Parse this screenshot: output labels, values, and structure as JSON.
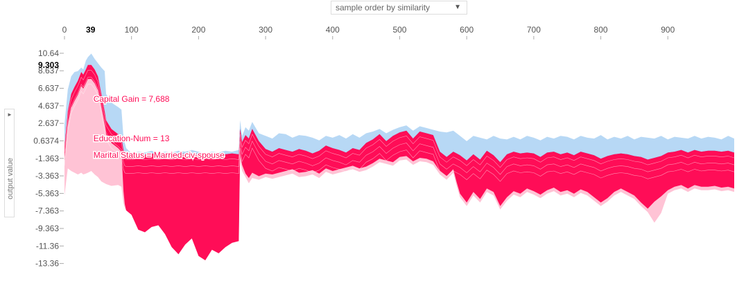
{
  "controls": {
    "order_label": "sample order by similarity",
    "caret": "▼",
    "side_label": "output value",
    "side_arrow": "►"
  },
  "colors": {
    "positive": "#ff0d57",
    "positive_light": "#ffc3d5",
    "negative": "#1e88e5",
    "negative_light": "#b7d8f5",
    "axis_text": "#555555",
    "highlight_text": "#000000"
  },
  "chart_data": {
    "type": "area",
    "xlim": [
      0,
      999
    ],
    "ylim": [
      -14.5,
      11.5
    ],
    "x_ticks": [
      0,
      100,
      200,
      300,
      400,
      500,
      600,
      700,
      800,
      900
    ],
    "x_highlight": "39",
    "y_ticks": [
      "10.64",
      "8.637",
      "6.637",
      "4.637",
      "2.637",
      "0.6374",
      "-1.363",
      "-3.363",
      "-5.363",
      "-7.363",
      "-9.363",
      "-11.36",
      "-13.36"
    ],
    "y_tick_values": [
      10.637,
      8.637,
      6.637,
      4.637,
      2.637,
      0.6374,
      -1.363,
      -3.363,
      -5.363,
      -7.363,
      -9.363,
      -11.363,
      -13.363
    ],
    "y_highlight": "9.303",
    "y_highlight_value": 9.303,
    "highlight_sample": 39,
    "annotations": [
      {
        "text": "Capital Gain = 7,688",
        "value": 5.4
      },
      {
        "text": "Education-Num = 13",
        "value": 0.9
      },
      {
        "text": "Marital Status = Married-civ-spouse",
        "value": -1.0
      }
    ],
    "series": [
      {
        "role": "upper-envelope",
        "x": [
          0,
          5,
          10,
          15,
          20,
          25,
          28,
          32,
          35,
          40,
          45,
          50,
          55,
          60,
          62,
          70,
          80,
          85,
          88,
          90,
          92,
          100,
          110,
          120,
          130,
          140,
          150,
          160,
          170,
          180,
          190,
          200,
          210,
          220,
          230,
          240,
          250,
          260,
          262,
          265,
          270,
          275,
          280,
          290,
          300,
          310,
          320,
          330,
          340,
          350,
          360,
          370,
          380,
          390,
          400,
          410,
          420,
          430,
          440,
          450,
          460,
          470,
          480,
          490,
          500,
          510,
          520,
          530,
          540,
          550,
          560,
          570,
          580,
          585,
          590,
          600,
          610,
          620,
          630,
          640,
          650,
          660,
          670,
          680,
          690,
          700,
          710,
          720,
          730,
          740,
          750,
          760,
          770,
          780,
          790,
          800,
          810,
          820,
          830,
          840,
          850,
          860,
          870,
          880,
          890,
          900,
          910,
          920,
          930,
          940,
          950,
          960,
          970,
          980,
          990,
          999
        ],
        "y": [
          2.5,
          6.5,
          8.0,
          8.5,
          8.6,
          9.0,
          8.8,
          9.8,
          10.2,
          10.6,
          10.0,
          9.5,
          9.0,
          8.6,
          6.0,
          5.0,
          4.5,
          4.2,
          1.0,
          0.4,
          -0.2,
          -0.8,
          -0.6,
          -0.7,
          -0.5,
          -0.8,
          -0.6,
          -0.7,
          -0.5,
          -0.6,
          -0.4,
          -0.6,
          -0.8,
          -0.6,
          -0.7,
          -0.5,
          -0.6,
          -0.4,
          3.0,
          1.2,
          2.2,
          1.8,
          2.8,
          1.5,
          1.2,
          0.9,
          1.5,
          1.4,
          1.0,
          1.3,
          1.2,
          1.0,
          0.7,
          1.2,
          1.0,
          1.3,
          0.9,
          1.4,
          1.0,
          1.5,
          1.7,
          2.0,
          1.5,
          1.9,
          2.2,
          2.4,
          1.8,
          2.3,
          2.1,
          1.9,
          1.7,
          1.6,
          1.8,
          1.5,
          1.2,
          0.6,
          1.2,
          1.0,
          0.8,
          1.2,
          0.9,
          0.8,
          1.1,
          0.8,
          1.2,
          1.0,
          0.7,
          1.1,
          0.9,
          1.2,
          1.1,
          0.8,
          1.2,
          1.0,
          0.9,
          1.3,
          0.8,
          1.1,
          0.9,
          1.2,
          0.8,
          1.1,
          1.0,
          0.9,
          1.2,
          0.8,
          1.1,
          1.0,
          0.9,
          1.2,
          0.9,
          1.1,
          1.0,
          0.8,
          1.2,
          0.9
        ]
      },
      {
        "role": "model-output",
        "x": [
          0,
          5,
          10,
          15,
          20,
          25,
          28,
          32,
          35,
          40,
          45,
          50,
          55,
          60,
          62,
          70,
          80,
          85,
          88,
          90,
          92,
          100,
          110,
          120,
          130,
          140,
          150,
          160,
          170,
          180,
          190,
          200,
          210,
          220,
          230,
          240,
          250,
          260,
          262,
          265,
          270,
          275,
          280,
          290,
          300,
          310,
          320,
          330,
          340,
          350,
          360,
          370,
          380,
          390,
          400,
          410,
          420,
          430,
          440,
          450,
          460,
          470,
          480,
          490,
          500,
          510,
          520,
          530,
          540,
          550,
          560,
          570,
          580,
          585,
          590,
          600,
          610,
          620,
          630,
          640,
          650,
          660,
          670,
          680,
          690,
          700,
          710,
          720,
          730,
          740,
          750,
          760,
          770,
          780,
          790,
          800,
          810,
          820,
          830,
          840,
          850,
          860,
          870,
          880,
          890,
          900,
          910,
          920,
          930,
          940,
          950,
          960,
          970,
          980,
          990,
          999
        ],
        "y": [
          0.0,
          4.0,
          6.0,
          6.8,
          7.5,
          8.5,
          8.2,
          8.8,
          9.3,
          9.3,
          8.8,
          8.0,
          6.0,
          4.0,
          3.0,
          2.0,
          1.4,
          1.0,
          -3.5,
          -5.0,
          -6.0,
          -6.8,
          -8.5,
          -8.8,
          -8.2,
          -8.0,
          -9.0,
          -10.5,
          -11.0,
          -10.2,
          -9.5,
          -11.2,
          -12.0,
          -10.8,
          -11.3,
          -10.5,
          -10.0,
          -9.8,
          0.8,
          -0.5,
          -1.5,
          -2.0,
          -1.4,
          -1.8,
          -1.5,
          -1.6,
          -1.4,
          -1.2,
          -1.0,
          -1.4,
          -1.3,
          -1.1,
          -1.5,
          -0.9,
          -1.2,
          -1.0,
          -0.8,
          -0.6,
          -0.9,
          -0.7,
          -0.3,
          0.2,
          0.0,
          -0.2,
          0.4,
          0.5,
          -0.1,
          0.3,
          0.2,
          -0.1,
          -1.2,
          -1.8,
          -1.0,
          -2.5,
          -3.8,
          -4.8,
          -3.6,
          -4.4,
          -3.2,
          -3.6,
          -5.2,
          -4.2,
          -3.5,
          -3.8,
          -3.2,
          -3.5,
          -3.9,
          -3.4,
          -3.1,
          -3.6,
          -3.4,
          -3.8,
          -3.3,
          -3.6,
          -4.2,
          -4.8,
          -4.3,
          -3.6,
          -3.2,
          -3.6,
          -4.0,
          -4.8,
          -5.5,
          -4.7,
          -4.1,
          -3.4,
          -3.0,
          -2.8,
          -3.2,
          -2.8,
          -3.0,
          -3.0,
          -2.9,
          -3.1,
          -3.0,
          -3.2
        ]
      },
      {
        "role": "red-blue-boundary",
        "x": [
          0,
          5,
          10,
          15,
          20,
          25,
          28,
          32,
          35,
          40,
          45,
          50,
          55,
          60,
          62,
          70,
          80,
          85,
          88,
          90,
          92,
          100,
          110,
          120,
          130,
          140,
          150,
          160,
          170,
          180,
          190,
          200,
          210,
          220,
          230,
          240,
          250,
          260,
          262,
          265,
          270,
          275,
          280,
          290,
          300,
          310,
          320,
          330,
          340,
          350,
          360,
          370,
          380,
          390,
          400,
          410,
          420,
          430,
          440,
          450,
          460,
          470,
          480,
          490,
          500,
          510,
          520,
          530,
          540,
          550,
          560,
          570,
          580,
          585,
          590,
          600,
          610,
          620,
          630,
          640,
          650,
          660,
          670,
          680,
          690,
          700,
          710,
          720,
          730,
          740,
          750,
          760,
          770,
          780,
          790,
          800,
          810,
          820,
          830,
          840,
          850,
          860,
          870,
          880,
          890,
          900,
          910,
          920,
          930,
          940,
          950,
          960,
          970,
          980,
          990,
          999
        ],
        "y": [
          0.0,
          4.0,
          6.0,
          6.8,
          7.5,
          8.5,
          8.2,
          8.8,
          9.3,
          9.3,
          8.8,
          8.0,
          6.0,
          4.0,
          3.0,
          2.0,
          1.4,
          1.0,
          -0.4,
          -0.8,
          -0.9,
          -0.9,
          -0.8,
          -0.9,
          -0.8,
          -0.9,
          -0.8,
          -0.9,
          -0.8,
          -0.9,
          -0.8,
          -0.9,
          -0.8,
          -0.9,
          -0.8,
          -0.9,
          -0.8,
          -0.9,
          2.0,
          0.5,
          1.3,
          0.9,
          2.0,
          0.6,
          -0.3,
          -0.6,
          -0.2,
          -0.4,
          -0.6,
          -0.3,
          -0.5,
          -0.8,
          -0.5,
          0.1,
          -0.2,
          -0.4,
          -0.7,
          -0.2,
          -0.4,
          0.4,
          0.8,
          1.4,
          0.6,
          1.2,
          1.6,
          1.8,
          0.9,
          1.7,
          1.5,
          1.3,
          -0.6,
          -1.2,
          -0.6,
          -0.8,
          -1.0,
          -1.6,
          -0.9,
          -1.5,
          -0.5,
          -1.0,
          -1.8,
          -0.9,
          -0.6,
          -0.8,
          -0.7,
          -0.8,
          -1.2,
          -0.7,
          -0.6,
          -0.9,
          -0.7,
          -1.0,
          -0.6,
          -0.8,
          -1.0,
          -1.4,
          -1.1,
          -0.9,
          -0.8,
          -0.9,
          -1.1,
          -1.2,
          -1.5,
          -1.3,
          -1.1,
          -0.7,
          -0.6,
          -0.4,
          -0.7,
          -0.4,
          -0.6,
          -0.5,
          -0.5,
          -0.6,
          -0.5,
          -0.7
        ]
      },
      {
        "role": "lower-envelope",
        "x": [
          0,
          5,
          10,
          15,
          20,
          25,
          28,
          32,
          35,
          40,
          45,
          50,
          55,
          60,
          62,
          70,
          80,
          85,
          88,
          90,
          92,
          100,
          110,
          120,
          130,
          140,
          150,
          160,
          170,
          180,
          190,
          200,
          210,
          220,
          230,
          240,
          250,
          260,
          262,
          265,
          270,
          275,
          280,
          290,
          300,
          310,
          320,
          330,
          340,
          350,
          360,
          370,
          380,
          390,
          400,
          410,
          420,
          430,
          440,
          450,
          460,
          470,
          480,
          490,
          500,
          510,
          520,
          530,
          540,
          550,
          560,
          570,
          580,
          585,
          590,
          600,
          610,
          620,
          630,
          640,
          650,
          660,
          670,
          680,
          690,
          700,
          710,
          720,
          730,
          740,
          750,
          760,
          770,
          780,
          790,
          800,
          810,
          820,
          830,
          840,
          850,
          860,
          870,
          880,
          890,
          900,
          910,
          920,
          930,
          940,
          950,
          960,
          970,
          980,
          990,
          999
        ],
        "y": [
          -5.6,
          -2.5,
          -2.8,
          -3.0,
          -3.2,
          -3.0,
          -3.2,
          -3.1,
          -3.0,
          -2.8,
          -3.2,
          -3.5,
          -4.0,
          -4.2,
          -4.3,
          -4.5,
          -4.4,
          -4.6,
          -6.5,
          -7.0,
          -7.3,
          -7.8,
          -9.5,
          -9.8,
          -9.2,
          -9.0,
          -10.0,
          -11.5,
          -12.3,
          -11.2,
          -10.5,
          -12.5,
          -13.0,
          -11.8,
          -12.2,
          -11.5,
          -11.0,
          -10.8,
          -1.5,
          -2.8,
          -3.5,
          -4.2,
          -3.6,
          -3.8,
          -3.5,
          -3.7,
          -3.5,
          -3.3,
          -3.1,
          -3.5,
          -3.4,
          -3.2,
          -3.6,
          -2.9,
          -3.2,
          -3.0,
          -2.8,
          -2.6,
          -2.9,
          -2.7,
          -2.3,
          -1.8,
          -2.0,
          -2.2,
          -1.6,
          -1.5,
          -2.1,
          -1.7,
          -1.8,
          -2.1,
          -3.2,
          -3.8,
          -3.0,
          -4.5,
          -5.8,
          -6.8,
          -5.6,
          -6.4,
          -5.2,
          -5.6,
          -7.2,
          -6.2,
          -5.5,
          -5.8,
          -5.2,
          -5.5,
          -5.9,
          -5.4,
          -5.1,
          -5.6,
          -5.4,
          -5.8,
          -5.3,
          -5.6,
          -6.2,
          -6.8,
          -6.3,
          -5.6,
          -5.2,
          -5.6,
          -6.0,
          -6.8,
          -7.5,
          -8.7,
          -7.6,
          -5.4,
          -5.0,
          -4.8,
          -5.2,
          -4.8,
          -5.0,
          -5.0,
          -4.9,
          -5.1,
          -5.0,
          -5.2
        ]
      }
    ]
  }
}
